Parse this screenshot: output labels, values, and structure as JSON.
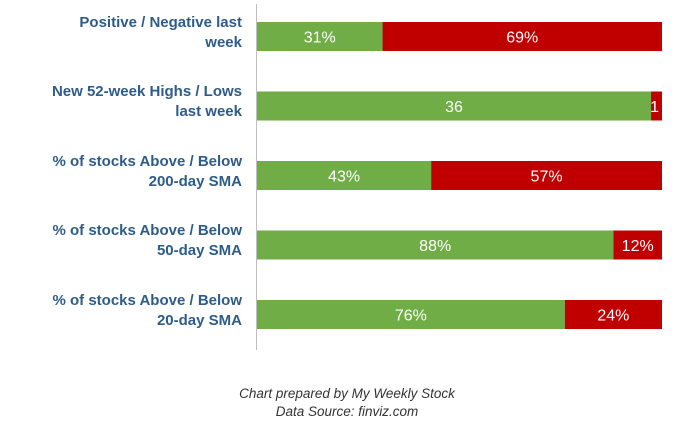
{
  "chart_data": {
    "type": "bar",
    "orientation": "horizontal",
    "stacked": true,
    "categories": [
      "Positive / Negative last week",
      "New 52-week Highs / Lows last week",
      "% of stocks Above / Below 200-day SMA",
      "% of stocks Above / Below 50-day SMA",
      "% of stocks Above / Below 20-day SMA"
    ],
    "category_lines": [
      [
        "Positive / Negative last",
        "week"
      ],
      [
        "New 52-week Highs / Lows",
        "last week"
      ],
      [
        "% of stocks Above / Below",
        "200-day SMA"
      ],
      [
        "% of stocks Above / Below",
        "50-day SMA"
      ],
      [
        "% of stocks Above / Below",
        "20-day SMA"
      ]
    ],
    "series": [
      {
        "values": [
          31,
          36,
          43,
          88,
          76
        ],
        "labels": [
          "31%",
          "36",
          "43%",
          "88%",
          "76%"
        ],
        "color": "#70ad47"
      },
      {
        "values": [
          69,
          1,
          57,
          12,
          24
        ],
        "labels": [
          "69%",
          "1",
          "57%",
          "12%",
          "24%"
        ],
        "color": "#c00000"
      }
    ],
    "grid": false,
    "legend": "none"
  },
  "caption": {
    "line1": "Chart prepared by My Weekly Stock",
    "line2": "Data Source: finviz.com"
  },
  "colors": {
    "label_text": "#2e5c8a",
    "bar_text": "#ffffff",
    "axis": "#bfbfbf"
  }
}
